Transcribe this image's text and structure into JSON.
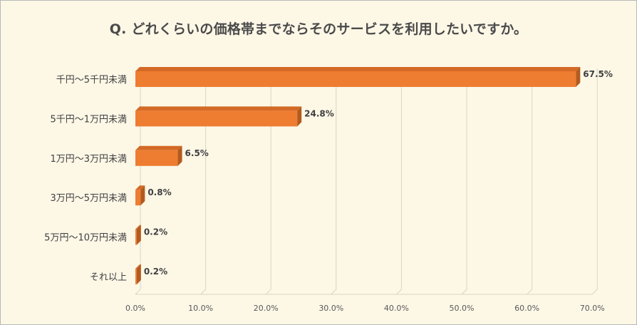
{
  "chart_data": {
    "type": "bar",
    "orientation": "horizontal",
    "title": "Q. どれくらいの価格帯までならそのサービスを利用したいですか。",
    "categories": [
      "千円～5千円未満",
      "5千円～1万円未満",
      "1万円～3万円未満",
      "3万円～5万円未満",
      "5万円～10万円未満",
      "それ以上"
    ],
    "values": [
      67.5,
      24.8,
      6.5,
      0.8,
      0.2,
      0.2
    ],
    "value_labels": [
      "67.5%",
      "24.8%",
      "6.5%",
      "0.8%",
      "0.2%",
      "0.2%"
    ],
    "x_ticks": [
      0,
      10,
      20,
      30,
      40,
      50,
      60,
      70
    ],
    "x_tick_labels": [
      "0.0%",
      "10.0%",
      "20.0%",
      "30.0%",
      "40.0%",
      "50.0%",
      "60.0%",
      "70.0%"
    ],
    "xlim": [
      0,
      70
    ],
    "xlabel": "",
    "ylabel": "",
    "grid": true,
    "legend": "none",
    "style": "3d",
    "colors": {
      "bar_front": "#ee7d31",
      "bar_side": "#b35b1e",
      "bar_top": "#d36a26",
      "background": "#fdf7e6",
      "grid": "#d9d4c4",
      "text": "#404040"
    }
  }
}
